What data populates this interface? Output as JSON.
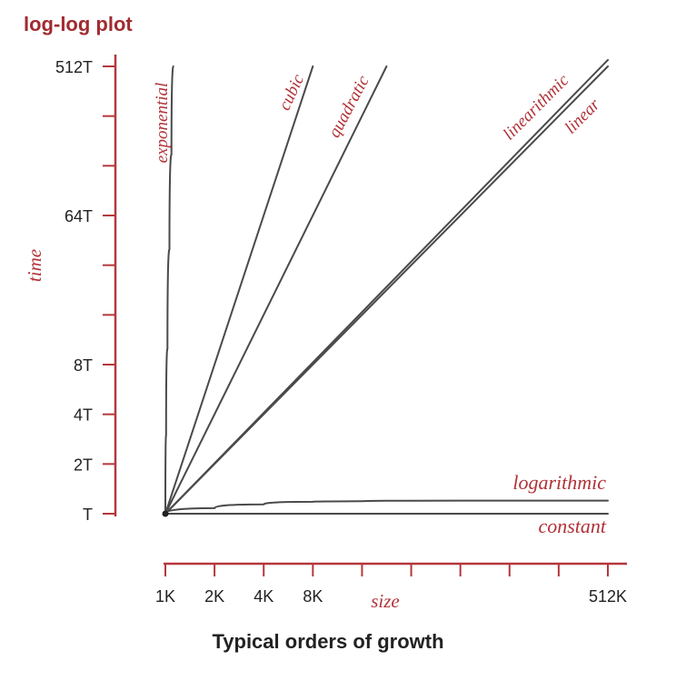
{
  "chart_data": {
    "type": "line",
    "title": "log-log plot",
    "subtitle": "Typical orders of growth",
    "xlabel": "size",
    "ylabel": "time",
    "x_scale": "log2",
    "y_scale": "log2",
    "x_ticks": [
      {
        "value": 1,
        "label": "1K"
      },
      {
        "value": 2,
        "label": "2K"
      },
      {
        "value": 4,
        "label": "4K"
      },
      {
        "value": 8,
        "label": "8K"
      },
      {
        "value": 16,
        "label": ""
      },
      {
        "value": 32,
        "label": ""
      },
      {
        "value": 64,
        "label": ""
      },
      {
        "value": 128,
        "label": ""
      },
      {
        "value": 256,
        "label": ""
      },
      {
        "value": 512,
        "label": "512K"
      }
    ],
    "y_ticks": [
      {
        "value": 1,
        "label": "T"
      },
      {
        "value": 2,
        "label": "2T"
      },
      {
        "value": 4,
        "label": "4T"
      },
      {
        "value": 8,
        "label": "8T"
      },
      {
        "value": 16,
        "label": ""
      },
      {
        "value": 32,
        "label": ""
      },
      {
        "value": 64,
        "label": "64T"
      },
      {
        "value": 128,
        "label": ""
      },
      {
        "value": 256,
        "label": ""
      },
      {
        "value": 512,
        "label": "512T"
      }
    ],
    "xlim": [
      1,
      512
    ],
    "ylim": [
      1,
      512
    ],
    "series": [
      {
        "name": "constant",
        "x": [
          1,
          512
        ],
        "y": [
          1,
          1
        ]
      },
      {
        "name": "logarithmic",
        "x": [
          1,
          2,
          4,
          8,
          16,
          64,
          512
        ],
        "y": [
          1,
          1.08,
          1.14,
          1.18,
          1.19,
          1.2,
          1.2
        ]
      },
      {
        "name": "linear",
        "x": [
          1,
          512
        ],
        "y": [
          1,
          512
        ]
      },
      {
        "name": "linearithmic",
        "x": [
          1,
          512
        ],
        "y": [
          1,
          560
        ]
      },
      {
        "name": "quadratic",
        "x": [
          1,
          22.6
        ],
        "y": [
          1,
          512
        ]
      },
      {
        "name": "cubic",
        "x": [
          1,
          8
        ],
        "y": [
          1,
          512
        ]
      },
      {
        "name": "exponential",
        "x": [
          1,
          1.01,
          1.03,
          1.06,
          1.09,
          1.12
        ],
        "y": [
          1,
          3,
          10,
          40,
          150,
          512
        ]
      }
    ]
  },
  "colors": {
    "axis": "#b5373c",
    "line": "#4a4a4a",
    "title": "#a02b30",
    "label": "#b03238",
    "subtitle": "#222222"
  }
}
